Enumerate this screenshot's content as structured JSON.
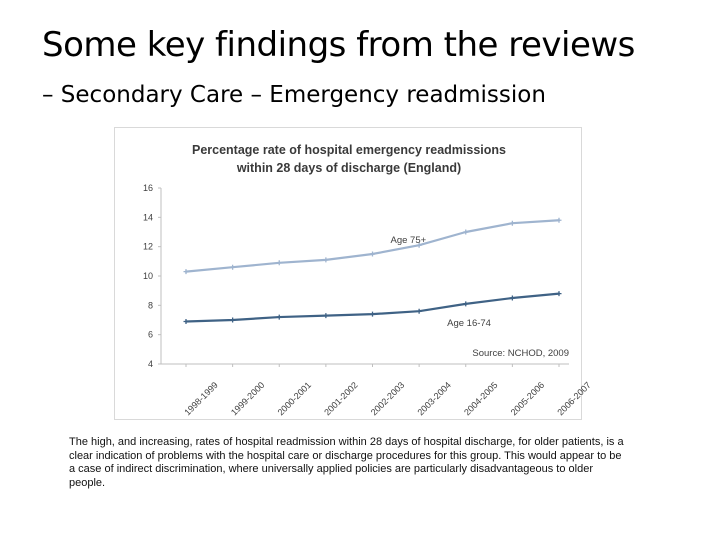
{
  "title": {
    "line1": "Some key findings from the reviews",
    "line2": "– Secondary Care – Emergency readmission"
  },
  "caption": "The high, and increasing, rates of hospital readmission within 28 days of hospital discharge, for older patients, is a clear indication of problems with the hospital care or discharge procedures for this group. This would appear to be a case of indirect discrimination, where universally applied policies are particularly disadvantageous to older people.",
  "chart_data": {
    "type": "line",
    "title": "Percentage rate of hospital emergency readmissions within 28 days of discharge (England)",
    "title_lines": [
      "Percentage rate of hospital emergency readmissions",
      "within 28 days of discharge (England)"
    ],
    "categories": [
      "1998-1999",
      "1999-2000",
      "2000-2001",
      "2001-2002",
      "2002-2003",
      "2003-2004",
      "2004-2005",
      "2005-2006",
      "2006-2007"
    ],
    "series": [
      {
        "name": "Age 75+",
        "color": "#9fb4cf",
        "values": [
          10.3,
          10.6,
          10.9,
          11.1,
          11.5,
          12.1,
          13.0,
          13.6,
          13.8
        ]
      },
      {
        "name": "Age 16-74",
        "color": "#3f6285",
        "values": [
          6.9,
          7.0,
          7.2,
          7.3,
          7.4,
          7.6,
          8.1,
          8.5,
          8.8
        ]
      }
    ],
    "yticks": [
      4,
      6,
      8,
      10,
      12,
      14,
      16
    ],
    "ylim": [
      4,
      16
    ],
    "source": "Source: NCHOD, 2009",
    "xlabel": "",
    "ylabel": "",
    "grid": false,
    "legend": "inline labels"
  }
}
